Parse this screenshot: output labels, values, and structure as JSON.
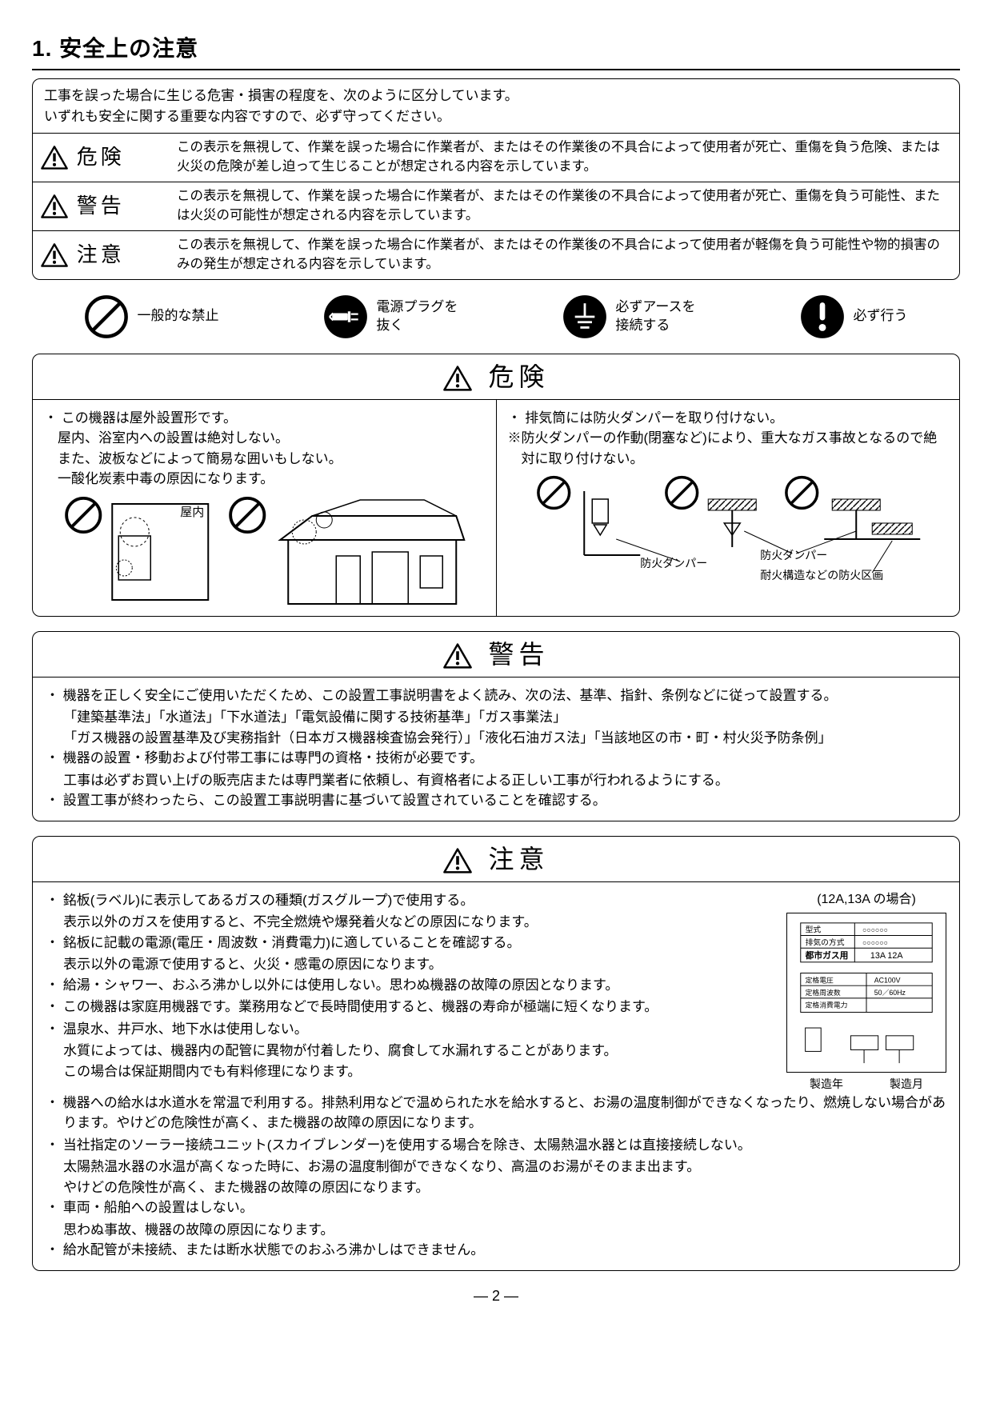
{
  "page_number": "— 2 —",
  "section_title": "1. 安全上の注意",
  "intro_lines": [
    "工事を誤った場合に生じる危害・損害の程度を、次のように区分しています。",
    "いずれも安全に関する重要な内容ですので、必ず守ってください。"
  ],
  "levels": [
    {
      "label": "危険",
      "desc": "この表示を無視して、作業を誤った場合に作業者が、またはその作業後の不具合によって使用者が死亡、重傷を負う危険、または火災の危険が差し迫って生じることが想定される内容を示しています。"
    },
    {
      "label": "警告",
      "desc": "この表示を無視して、作業を誤った場合に作業者が、またはその作業後の不具合によって使用者が死亡、重傷を負う可能性、または火災の可能性が想定される内容を示しています。"
    },
    {
      "label": "注意",
      "desc": "この表示を無視して、作業を誤った場合に作業者が、またはその作業後の不具合によって使用者が軽傷を負う可能性や物的損害のみの発生が想定される内容を示しています。"
    }
  ],
  "icons": [
    {
      "name": "prohibit",
      "label": "一般的な禁止"
    },
    {
      "name": "unplug",
      "label": "電源プラグを\n抜く"
    },
    {
      "name": "ground",
      "label": "必ずアースを\n接続する"
    },
    {
      "name": "must-do",
      "label": "必ず行う"
    }
  ],
  "danger": {
    "title": "危険",
    "left": [
      "・ この機器は屋外設置形です。",
      "屋内、浴室内への設置は絶対しない。",
      "また、波板などによって簡易な囲いもしない。",
      "一酸化炭素中毒の原因になります。"
    ],
    "left_diagram_label": "屋内",
    "right": [
      "・ 排気筒には防火ダンパーを取り付けない。",
      "※防火ダンパーの作動(閉塞など)により、重大なガス事故となるので絶対に取り付けない。"
    ],
    "right_labels": {
      "damper1": "防火ダンパー",
      "damper2": "防火ダンパー",
      "fire_section": "耐火構造などの防火区画"
    }
  },
  "warning": {
    "title": "警告",
    "items": [
      {
        "main": "機器を正しく安全にご使用いただくため、この設置工事説明書をよく読み、次の法、基準、指針、条例などに従って設置する。",
        "subs": [
          "「建築基準法」「水道法」「下水道法」「電気設備に関する技術基準」「ガス事業法」",
          "「ガス機器の設置基準及び実務指針（日本ガス機器検査協会発行）」「液化石油ガス法」「当該地区の市・町・村火災予防条例」"
        ]
      },
      {
        "main": "機器の設置・移動および付帯工事には専門の資格・技術が必要です。",
        "subs": [
          "工事は必ずお買い上げの販売店または専門業者に依頼し、有資格者による正しい工事が行われるようにする。"
        ]
      },
      {
        "main": "設置工事が終わったら、この設置工事説明書に基づいて設置されていることを確認する。",
        "subs": []
      }
    ]
  },
  "caution": {
    "title": "注意",
    "label_title": "(12A,13A の場合)",
    "label_rows": {
      "r1a": "型式",
      "r1b": "○○○○○○",
      "r2a": "排気の方式",
      "r2b": "○○○○○○",
      "gas": "都市ガス用",
      "gas_val": "13A  12A",
      "r3a": "定格電圧",
      "r3b": "AC100V",
      "r4a": "定格周波数",
      "r4b": "50／60Hz",
      "r5a": "定格消費電力"
    },
    "label_footer": {
      "year": "製造年",
      "month": "製造月"
    },
    "items": [
      {
        "main": "銘板(ラベル)に表示してあるガスの種類(ガスグループ)で使用する。",
        "subs": [
          "表示以外のガスを使用すると、不完全燃焼や爆発着火などの原因になります。"
        ]
      },
      {
        "main": "銘板に記載の電源(電圧・周波数・消費電力)に適していることを確認する。",
        "subs": [
          "表示以外の電源で使用すると、火災・感電の原因になります。"
        ]
      },
      {
        "main": "給湯・シャワー、おふろ沸かし以外には使用しない。思わぬ機器の故障の原因となります。",
        "subs": []
      },
      {
        "main": "この機器は家庭用機器です。業務用などで長時間使用すると、機器の寿命が極端に短くなります。",
        "subs": []
      },
      {
        "main": "温泉水、井戸水、地下水は使用しない。",
        "subs": [
          "水質によっては、機器内の配管に異物が付着したり、腐食して水漏れすることがあります。",
          "この場合は保証期間内でも有料修理になります。"
        ]
      },
      {
        "main": "機器への給水は水道水を常温で利用する。排熱利用などで温められた水を給水すると、お湯の温度制御ができなくなったり、燃焼しない場合があります。やけどの危険性が高く、また機器の故障の原因になります。",
        "subs": []
      },
      {
        "main": "当社指定のソーラー接続ユニット(スカイブレンダー)を使用する場合を除き、太陽熱温水器とは直接接続しない。",
        "subs": [
          "太陽熱温水器の水温が高くなった時に、お湯の温度制御ができなくなり、高温のお湯がそのまま出ます。",
          "やけどの危険性が高く、また機器の故障の原因になります。"
        ]
      },
      {
        "main": "車両・船舶への設置はしない。",
        "subs": [
          "思わぬ事故、機器の故障の原因になります。"
        ]
      },
      {
        "main": "給水配管が未接続、または断水状態でのおふろ沸かしはできません。",
        "subs": []
      }
    ]
  },
  "colors": {
    "black": "#000000",
    "white": "#ffffff"
  }
}
